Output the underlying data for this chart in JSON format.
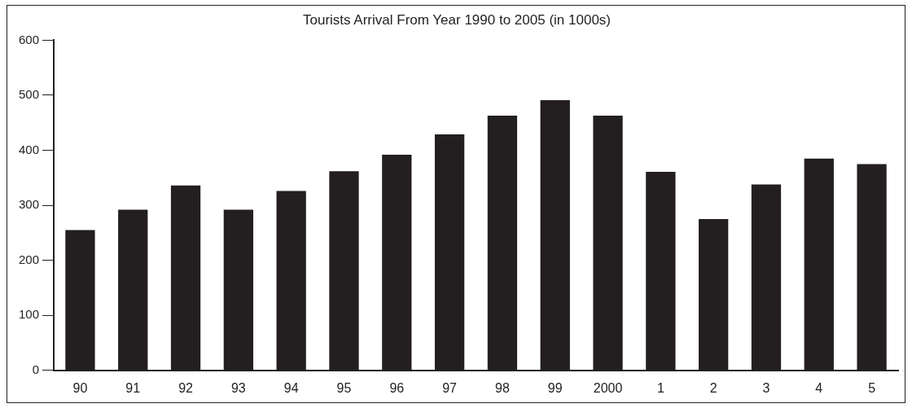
{
  "chart_data": {
    "type": "bar",
    "title": "Tourists Arrival From Year 1990 to 2005 (in 1000s)",
    "categories": [
      "90",
      "91",
      "92",
      "93",
      "94",
      "95",
      "96",
      "97",
      "98",
      "99",
      "2000",
      "1",
      "2",
      "3",
      "4",
      "5"
    ],
    "values": [
      255,
      292,
      336,
      292,
      326,
      362,
      392,
      429,
      463,
      491,
      463,
      361,
      275,
      338,
      385,
      375
    ],
    "color": "#231f20",
    "ylim": [
      0,
      600
    ],
    "yticks": [
      0,
      100,
      200,
      300,
      400,
      500,
      600
    ],
    "grid": false,
    "legend": false
  }
}
